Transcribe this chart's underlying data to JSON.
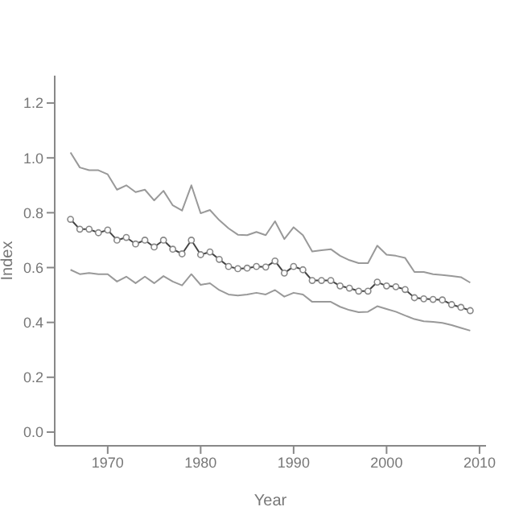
{
  "chart_data": {
    "type": "line",
    "xlabel": "Year",
    "ylabel": "Index",
    "x": [
      1966,
      1967,
      1968,
      1969,
      1970,
      1971,
      1972,
      1973,
      1974,
      1975,
      1976,
      1977,
      1978,
      1979,
      1980,
      1981,
      1982,
      1983,
      1984,
      1985,
      1986,
      1987,
      1988,
      1989,
      1990,
      1991,
      1992,
      1993,
      1994,
      1995,
      1996,
      1997,
      1998,
      1999,
      2000,
      2001,
      2002,
      2003,
      2004,
      2005,
      2006,
      2007,
      2008,
      2009
    ],
    "series": [
      {
        "color": "#999999",
        "marker": "none",
        "values": [
          1.02,
          0.965,
          0.955,
          0.955,
          0.94,
          0.884,
          0.9,
          0.875,
          0.884,
          0.845,
          0.88,
          0.827,
          0.808,
          0.9,
          0.798,
          0.81,
          0.773,
          0.743,
          0.72,
          0.718,
          0.73,
          0.718,
          0.769,
          0.704,
          0.747,
          0.718,
          0.659,
          0.663,
          0.667,
          0.643,
          0.627,
          0.616,
          0.616,
          0.68,
          0.647,
          0.643,
          0.635,
          0.584,
          0.584,
          0.576,
          0.573,
          0.569,
          0.565,
          0.545
        ]
      },
      {
        "color": "#444444",
        "marker": "circle",
        "values": [
          0.776,
          0.74,
          0.74,
          0.727,
          0.737,
          0.7,
          0.71,
          0.686,
          0.7,
          0.675,
          0.7,
          0.667,
          0.65,
          0.7,
          0.647,
          0.657,
          0.63,
          0.604,
          0.596,
          0.598,
          0.604,
          0.602,
          0.624,
          0.58,
          0.604,
          0.592,
          0.553,
          0.553,
          0.553,
          0.533,
          0.525,
          0.514,
          0.514,
          0.547,
          0.533,
          0.53,
          0.52,
          0.49,
          0.486,
          0.484,
          0.482,
          0.465,
          0.455,
          0.443
        ]
      },
      {
        "color": "#999999",
        "marker": "none",
        "values": [
          0.592,
          0.576,
          0.58,
          0.576,
          0.576,
          0.549,
          0.567,
          0.543,
          0.567,
          0.543,
          0.569,
          0.549,
          0.535,
          0.576,
          0.537,
          0.543,
          0.518,
          0.502,
          0.498,
          0.502,
          0.508,
          0.502,
          0.518,
          0.494,
          0.508,
          0.502,
          0.475,
          0.475,
          0.475,
          0.457,
          0.445,
          0.437,
          0.439,
          0.459,
          0.449,
          0.439,
          0.425,
          0.412,
          0.404,
          0.402,
          0.398,
          0.39,
          0.38,
          0.37
        ]
      }
    ],
    "xlim": [
      1964.3,
      2010.7
    ],
    "xticks": [
      1970,
      1980,
      1990,
      2000,
      2010
    ],
    "ylim": [
      -0.05,
      1.3
    ],
    "yticks": [
      {
        "value": 0,
        "label": "0.0"
      },
      {
        "value": 0.2,
        "label": "0.2"
      },
      {
        "value": 0.4,
        "label": "0.4"
      },
      {
        "value": 0.6,
        "label": "0.6"
      },
      {
        "value": 0.8,
        "label": "0.8"
      },
      {
        "value": 1,
        "label": "1.0"
      },
      {
        "value": 1.2,
        "label": "1.2"
      }
    ],
    "line_style": "solid"
  }
}
